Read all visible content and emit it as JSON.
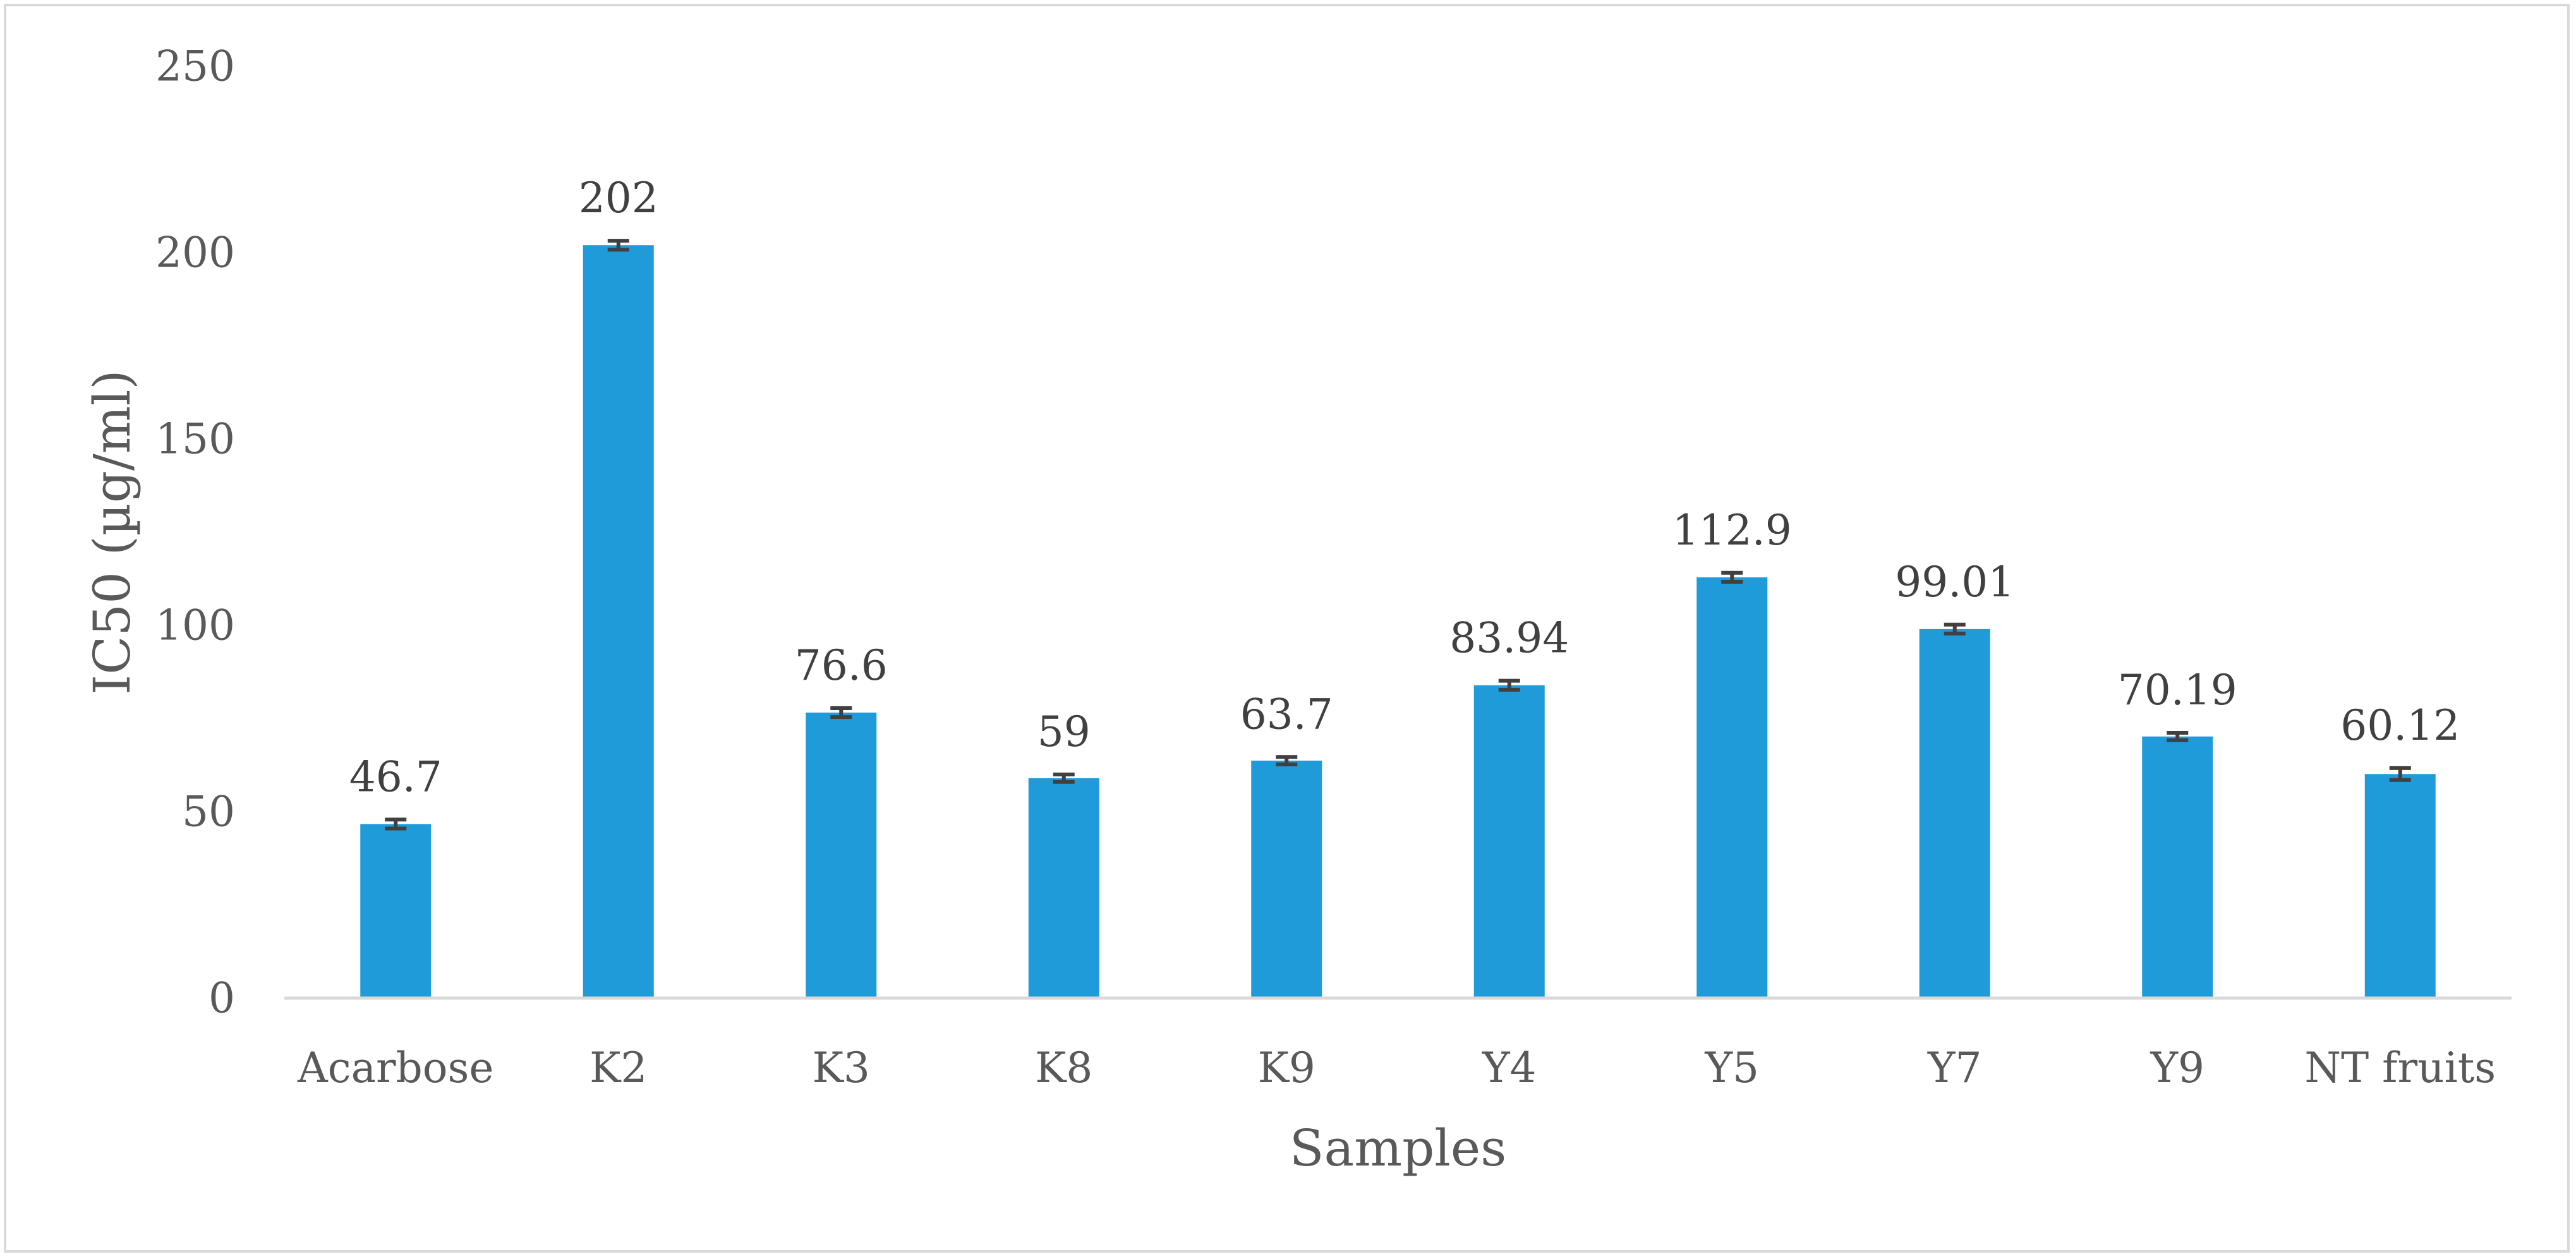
{
  "chart_data": {
    "type": "bar",
    "title": "",
    "xlabel": "Samples",
    "ylabel": "IC50 (µg/ml)",
    "categories": [
      "Acarbose",
      "K2",
      "K3",
      "K8",
      "K9",
      "Y4",
      "Y5",
      "Y7",
      "Y9",
      "NT fruits"
    ],
    "values": [
      46.7,
      202,
      76.6,
      59,
      63.7,
      83.94,
      112.9,
      99.01,
      70.19,
      60.12
    ],
    "value_labels": [
      "46.7",
      "202",
      "76.6",
      "59",
      "63.7",
      "83.94",
      "112.9",
      "99.01",
      "70.19",
      "60.12"
    ],
    "error": [
      1.2,
      1.2,
      1.2,
      1.0,
      1.0,
      1.2,
      1.2,
      1.2,
      1.0,
      1.6
    ],
    "ylim": [
      0,
      250
    ],
    "yticks": [
      0,
      50,
      100,
      150,
      200,
      250
    ],
    "grid": false,
    "legend": "none",
    "colors": {
      "bar": "#1f9bd9",
      "error_bar": "#404040",
      "axis": "#d9d9d9"
    }
  }
}
